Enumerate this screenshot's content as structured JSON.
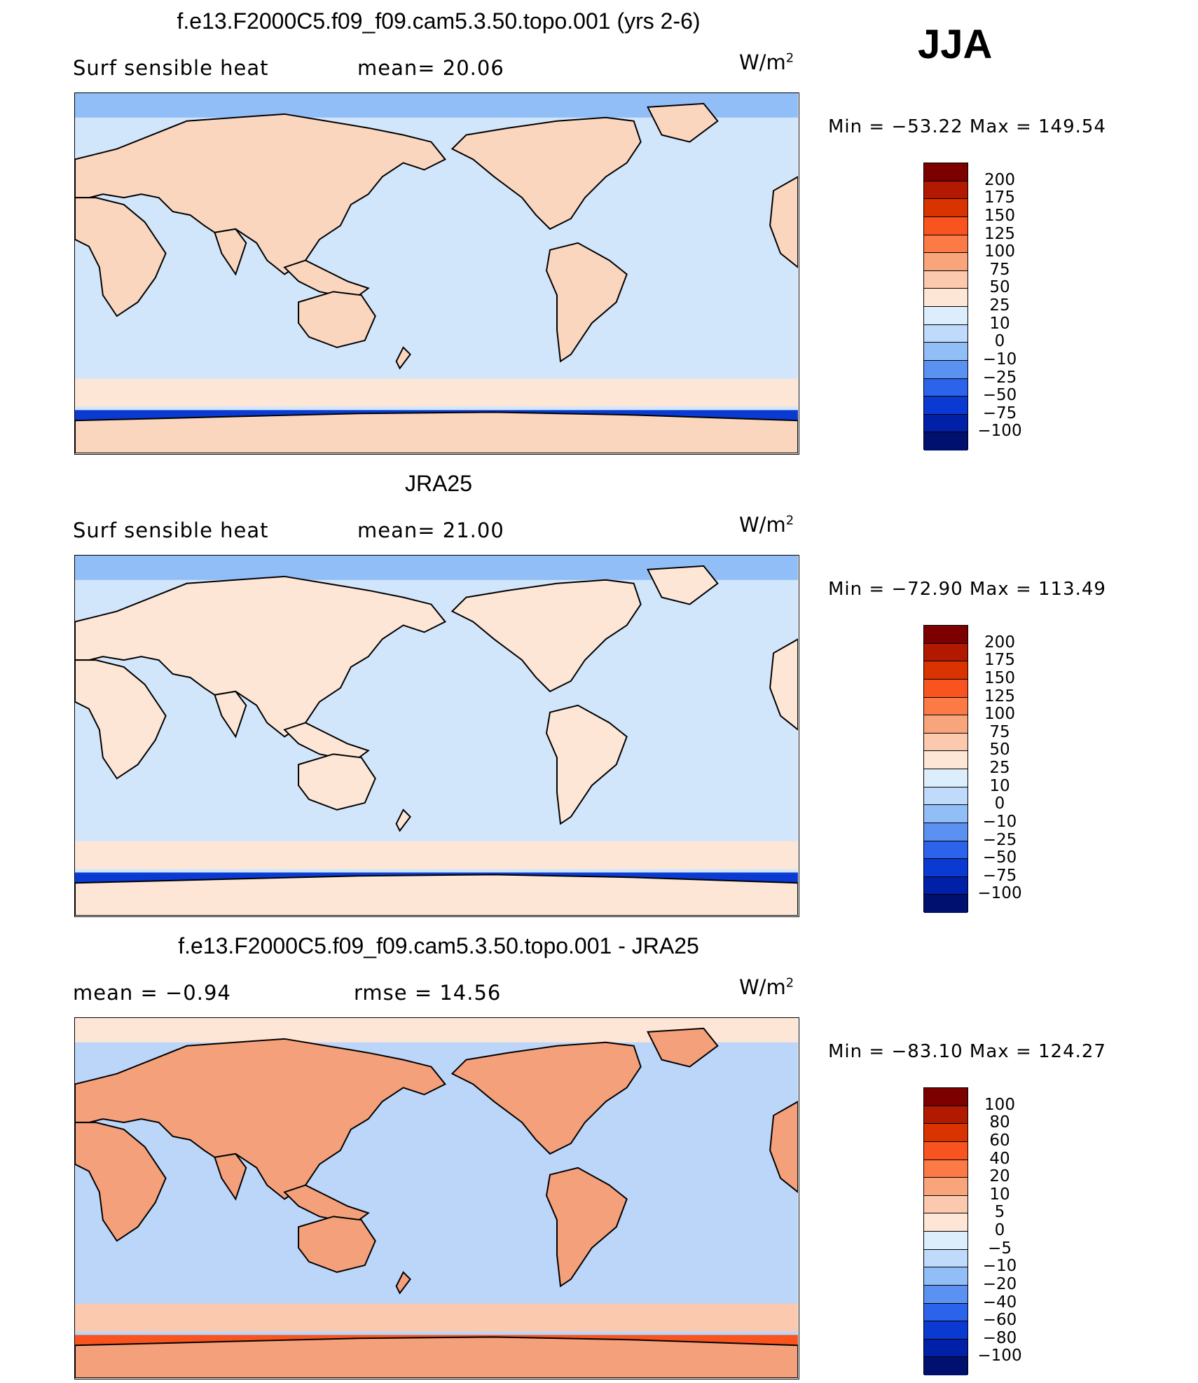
{
  "season": "JJA",
  "panels": [
    {
      "title": "f.e13.F2000C5.f09_f09.cam5.3.50.topo.001 (yrs 2-6)",
      "left_text": "Surf  sensible  heat",
      "mid_text": "mean=   20.06",
      "units_base": "W/m",
      "units_sup": "2",
      "minmax": "Min  =  −53.22  Max  =  149.54",
      "colorbar_labels": [
        "200",
        "175",
        "150",
        "125",
        "100",
        "75",
        "50",
        "25",
        "10",
        "0",
        "−10",
        "−25",
        "−50",
        "−75",
        "−100"
      ],
      "ocean_color": "#d2e6fb",
      "land_color": "#fbd6bf"
    },
    {
      "title": "JRA25",
      "left_text": "Surf  sensible  heat",
      "mid_text": "mean=   21.00",
      "units_base": "W/m",
      "units_sup": "2",
      "minmax": "Min  =  −72.90  Max  =  113.49",
      "colorbar_labels": [
        "200",
        "175",
        "150",
        "125",
        "100",
        "75",
        "50",
        "25",
        "10",
        "0",
        "−10",
        "−25",
        "−50",
        "−75",
        "−100"
      ],
      "ocean_color": "#d2e6fb",
      "land_color": "#fde6d6"
    },
    {
      "title": "f.e13.F2000C5.f09_f09.cam5.3.50.topo.001 - JRA25",
      "left_text": "mean  =    −0.94",
      "mid_text": "rmse  =    14.56",
      "units_base": "W/m",
      "units_sup": "2",
      "minmax": "Min  =  −83.10  Max  =  124.27",
      "colorbar_labels": [
        "100",
        "80",
        "60",
        "40",
        "20",
        "10",
        "5",
        "0",
        "−5",
        "−10",
        "−20",
        "−40",
        "−60",
        "−80",
        "−100"
      ],
      "ocean_color": "#bcd6fa",
      "land_color": "#f4a07a"
    }
  ],
  "colorbar_colors": [
    "#7c0000",
    "#b11a00",
    "#d93300",
    "#f9541f",
    "#fb7a45",
    "#f9a57c",
    "#fbcaae",
    "#fde6d6",
    "#dceefc",
    "#bfdafb",
    "#92bef8",
    "#5b92f2",
    "#2c63eb",
    "#0a3ad2",
    "#0020a8",
    "#00106e"
  ]
}
